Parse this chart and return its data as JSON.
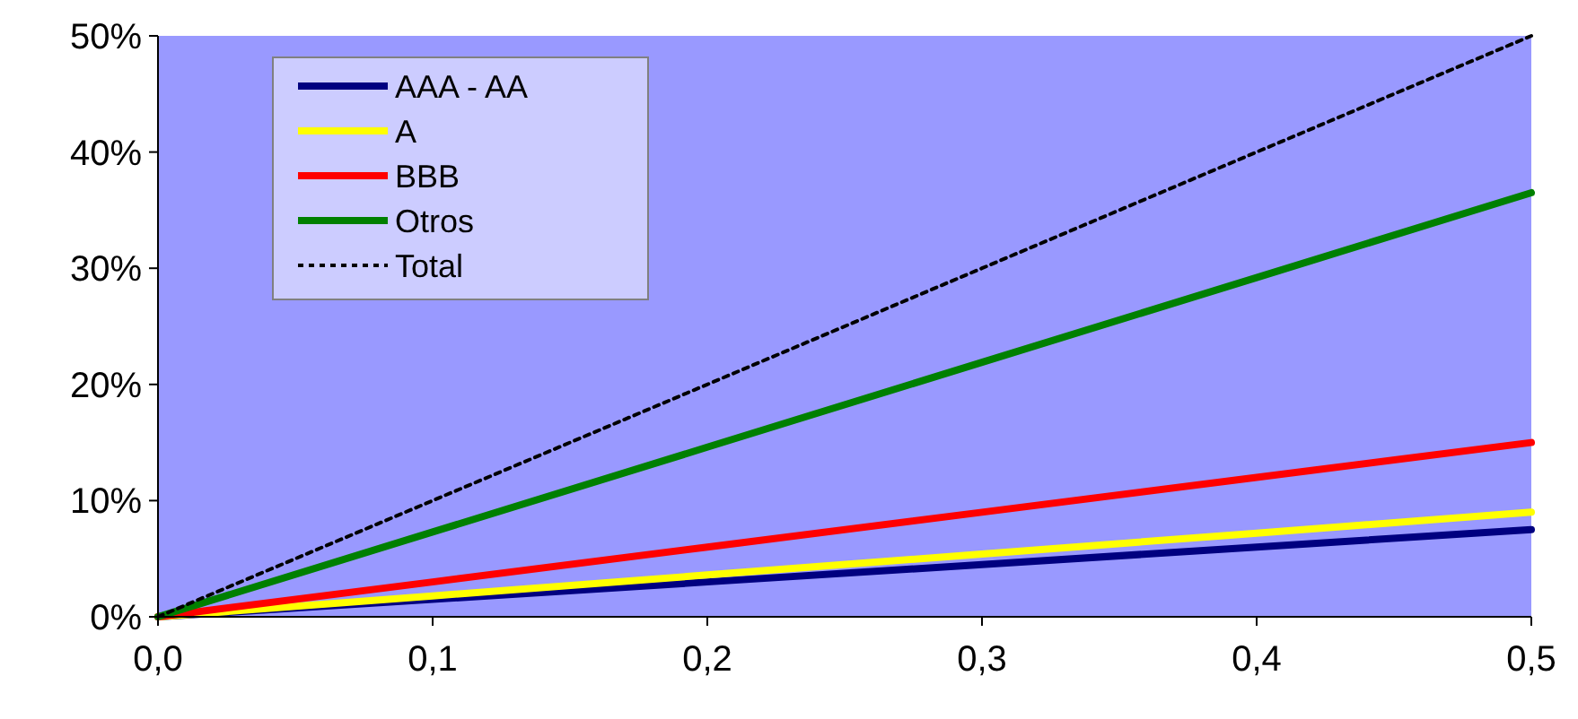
{
  "chart_data": {
    "type": "line",
    "x": [
      0,
      0.1,
      0.2,
      0.3,
      0.4,
      0.5
    ],
    "series": [
      {
        "name": "AAA - AA",
        "color": "#000080",
        "values": [
          0,
          1.5,
          3,
          4.5,
          6,
          7.5
        ]
      },
      {
        "name": "A",
        "color": "#ffff00",
        "values": [
          0,
          1.8,
          3.6,
          5.4,
          7.2,
          9
        ]
      },
      {
        "name": "BBB",
        "color": "#ff0000",
        "values": [
          0,
          3,
          6,
          9,
          12,
          15
        ]
      },
      {
        "name": "Otros",
        "color": "#008000",
        "values": [
          0,
          7.3,
          14.6,
          21.9,
          29.2,
          36.5
        ]
      },
      {
        "name": "Total",
        "color": "#000000",
        "line_style": "dotted",
        "values": [
          0,
          10,
          20,
          30,
          40,
          50
        ]
      }
    ],
    "xlim": [
      0,
      0.5
    ],
    "xticks": [
      {
        "value": 0,
        "label": "0,0"
      },
      {
        "value": 0.1,
        "label": "0,1"
      },
      {
        "value": 0.2,
        "label": "0,2"
      },
      {
        "value": 0.3,
        "label": "0,3"
      },
      {
        "value": 0.4,
        "label": "0,4"
      },
      {
        "value": 0.5,
        "label": "0,5"
      }
    ],
    "ylim": [
      0,
      50
    ],
    "yticks": [
      {
        "value": 0,
        "label": "0%"
      },
      {
        "value": 10,
        "label": "10%"
      },
      {
        "value": 20,
        "label": "20%"
      },
      {
        "value": 30,
        "label": "30%"
      },
      {
        "value": 40,
        "label": "40%"
      },
      {
        "value": 50,
        "label": "50%"
      }
    ],
    "grid": false,
    "legend": "top left",
    "marker": "none",
    "line_style": "solid"
  }
}
